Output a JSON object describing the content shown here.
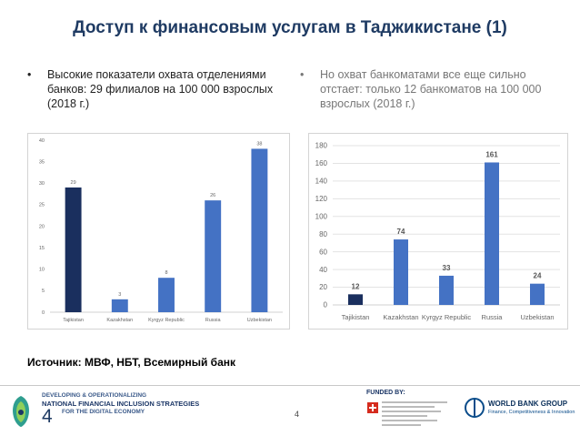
{
  "title": "Доступ к финансовым услугам в Таджикистане (1)",
  "bullets": [
    {
      "marker": "•",
      "text": "Высокие показатели охвата отделениями банков: 29 филиалов на 100 000 взрослых (2018 г.)"
    },
    {
      "marker": "•",
      "text": "Но охват банкоматами все еще сильно отстает: только 12 банкоматов на 100 000 взрослых (2018 г.)"
    }
  ],
  "chart_data": [
    {
      "type": "bar",
      "categories": [
        "Tajikistan",
        "Kazakhstan",
        "Kyrgyz Republic",
        "Russia",
        "Uzbekistan"
      ],
      "values": [
        29,
        3,
        8,
        26,
        38
      ],
      "ylim": [
        0,
        40
      ],
      "yticks": [
        0,
        5,
        10,
        15,
        20,
        25,
        30,
        35,
        40
      ],
      "colors": [
        "#1a2f5e",
        "#4472c4",
        "#4472c4",
        "#4472c4",
        "#4472c4"
      ],
      "grid": false,
      "data_labels": true
    },
    {
      "type": "bar",
      "categories": [
        "Tajikistan",
        "Kazakhstan",
        "Kyrgyz Republic",
        "Russia",
        "Uzbekistan"
      ],
      "values": [
        12,
        74,
        33,
        161,
        24
      ],
      "ylim": [
        0,
        180
      ],
      "yticks": [
        0,
        20,
        40,
        60,
        80,
        100,
        120,
        140,
        160,
        180
      ],
      "colors": [
        "#1a2f5e",
        "#4472c4",
        "#4472c4",
        "#4472c4",
        "#4472c4"
      ],
      "grid": true,
      "data_labels": true
    }
  ],
  "source": "Источник: МВФ, НБТ, Всемирный банк",
  "footer": {
    "tagline_line1": "DEVELOPING & OPERATIONALIZING",
    "tagline_line2": "NATIONAL FINANCIAL INCLUSION STRATEGIES",
    "tagline_line3": "FOR THE DIGITAL ECONOMY",
    "slide_number_big": "4",
    "slide_number_small": "4",
    "funded_by": "FUNDED BY:",
    "wbg_name": "WORLD BANK GROUP",
    "wbg_sub": "Finance, Competitiveness & Innovation"
  }
}
